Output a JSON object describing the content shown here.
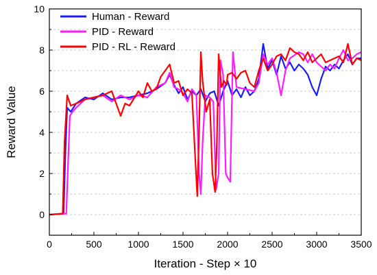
{
  "chart_data": {
    "type": "line",
    "xlabel": "Iteration - Step × 10",
    "ylabel": "Reward Value",
    "xlim": [
      0,
      3500
    ],
    "ylim": [
      -1,
      10
    ],
    "xticks": [
      0,
      500,
      1000,
      1500,
      2000,
      2500,
      3000,
      3500
    ],
    "yticks": [
      0,
      2,
      4,
      6,
      8,
      10
    ],
    "grid": "dashed horizontal",
    "legend_position": "top-left",
    "series": [
      {
        "name": "Human - Reward",
        "color": "#1a1aff",
        "points": [
          [
            0,
            0
          ],
          [
            160,
            0.05
          ],
          [
            180,
            3
          ],
          [
            200,
            5.2
          ],
          [
            240,
            5.0
          ],
          [
            300,
            5.4
          ],
          [
            400,
            5.7
          ],
          [
            500,
            5.6
          ],
          [
            600,
            5.9
          ],
          [
            700,
            5.6
          ],
          [
            800,
            5.7
          ],
          [
            900,
            5.7
          ],
          [
            1000,
            5.8
          ],
          [
            1100,
            5.9
          ],
          [
            1200,
            6.1
          ],
          [
            1300,
            6.4
          ],
          [
            1350,
            6.8
          ],
          [
            1400,
            6.3
          ],
          [
            1450,
            5.9
          ],
          [
            1500,
            6.2
          ],
          [
            1550,
            5.6
          ],
          [
            1600,
            6.0
          ],
          [
            1650,
            5.8
          ],
          [
            1700,
            6.1
          ],
          [
            1750,
            5.5
          ],
          [
            1800,
            5.9
          ],
          [
            1850,
            6.0
          ],
          [
            1900,
            5.3
          ],
          [
            1950,
            6.0
          ],
          [
            2000,
            6.5
          ],
          [
            2050,
            5.8
          ],
          [
            2100,
            6.1
          ],
          [
            2150,
            5.7
          ],
          [
            2200,
            6.2
          ],
          [
            2250,
            5.8
          ],
          [
            2300,
            6.0
          ],
          [
            2350,
            6.6
          ],
          [
            2400,
            8.3
          ],
          [
            2450,
            7.1
          ],
          [
            2500,
            7.5
          ],
          [
            2550,
            6.8
          ],
          [
            2600,
            7.7
          ],
          [
            2650,
            7.1
          ],
          [
            2700,
            7.4
          ],
          [
            2750,
            7.0
          ],
          [
            2800,
            7.3
          ],
          [
            2850,
            7.1
          ],
          [
            2900,
            6.8
          ],
          [
            2950,
            6.2
          ],
          [
            3000,
            5.8
          ],
          [
            3050,
            6.6
          ],
          [
            3100,
            7.2
          ],
          [
            3150,
            7.0
          ],
          [
            3200,
            7.3
          ],
          [
            3250,
            7.1
          ],
          [
            3300,
            7.5
          ],
          [
            3350,
            7.8
          ],
          [
            3400,
            7.3
          ],
          [
            3450,
            7.6
          ],
          [
            3500,
            7.6
          ]
        ]
      },
      {
        "name": "PID - Reward",
        "color": "#ff1aff",
        "points": [
          [
            0,
            0
          ],
          [
            190,
            0.05
          ],
          [
            210,
            2.5
          ],
          [
            230,
            4.8
          ],
          [
            260,
            5.0
          ],
          [
            300,
            5.2
          ],
          [
            400,
            5.6
          ],
          [
            500,
            5.7
          ],
          [
            600,
            5.8
          ],
          [
            700,
            5.5
          ],
          [
            800,
            5.8
          ],
          [
            900,
            5.6
          ],
          [
            1000,
            5.8
          ],
          [
            1100,
            5.7
          ],
          [
            1200,
            6.2
          ],
          [
            1300,
            6.4
          ],
          [
            1350,
            6.9
          ],
          [
            1400,
            6.2
          ],
          [
            1450,
            6.1
          ],
          [
            1500,
            5.9
          ],
          [
            1550,
            5.5
          ],
          [
            1600,
            6.1
          ],
          [
            1650,
            5.8
          ],
          [
            1680,
            2.0
          ],
          [
            1700,
            1.0
          ],
          [
            1720,
            3.5
          ],
          [
            1750,
            5.8
          ],
          [
            1800,
            5.7
          ],
          [
            1840,
            5.5
          ],
          [
            1870,
            1.2
          ],
          [
            1900,
            2.0
          ],
          [
            1920,
            7.5
          ],
          [
            1950,
            6.8
          ],
          [
            1980,
            2.0
          ],
          [
            2000,
            1.8
          ],
          [
            2030,
            1.6
          ],
          [
            2060,
            7.9
          ],
          [
            2100,
            6.2
          ],
          [
            2200,
            6.1
          ],
          [
            2300,
            6.0
          ],
          [
            2350,
            6.4
          ],
          [
            2400,
            7.8
          ],
          [
            2450,
            7.3
          ],
          [
            2500,
            7.6
          ],
          [
            2550,
            6.9
          ],
          [
            2600,
            5.8
          ],
          [
            2650,
            7.0
          ],
          [
            2700,
            7.6
          ],
          [
            2800,
            7.9
          ],
          [
            2850,
            7.8
          ],
          [
            2900,
            7.4
          ],
          [
            2950,
            7.8
          ],
          [
            3000,
            7.4
          ],
          [
            3050,
            7.2
          ],
          [
            3100,
            7.0
          ],
          [
            3150,
            7.3
          ],
          [
            3200,
            7.1
          ],
          [
            3250,
            7.6
          ],
          [
            3300,
            8.0
          ],
          [
            3350,
            7.5
          ],
          [
            3400,
            7.6
          ],
          [
            3450,
            7.8
          ],
          [
            3500,
            7.9
          ]
        ]
      },
      {
        "name": "PID - RL - Reward",
        "color": "#ff0000",
        "points": [
          [
            0,
            0
          ],
          [
            150,
            0.05
          ],
          [
            170,
            3.5
          ],
          [
            200,
            5.8
          ],
          [
            240,
            5.3
          ],
          [
            300,
            5.4
          ],
          [
            400,
            5.6
          ],
          [
            500,
            5.7
          ],
          [
            600,
            5.8
          ],
          [
            700,
            6.0
          ],
          [
            800,
            4.8
          ],
          [
            850,
            5.4
          ],
          [
            900,
            5.3
          ],
          [
            1000,
            6.0
          ],
          [
            1050,
            5.7
          ],
          [
            1100,
            6.4
          ],
          [
            1150,
            6.0
          ],
          [
            1200,
            6.1
          ],
          [
            1250,
            6.7
          ],
          [
            1300,
            7.0
          ],
          [
            1350,
            7.3
          ],
          [
            1400,
            6.4
          ],
          [
            1450,
            6.5
          ],
          [
            1500,
            5.8
          ],
          [
            1550,
            6.1
          ],
          [
            1600,
            5.9
          ],
          [
            1640,
            2.5
          ],
          [
            1660,
            0.9
          ],
          [
            1680,
            4.0
          ],
          [
            1700,
            7.9
          ],
          [
            1720,
            6.5
          ],
          [
            1760,
            5.0
          ],
          [
            1800,
            5.6
          ],
          [
            1830,
            2.0
          ],
          [
            1860,
            1.1
          ],
          [
            1880,
            3.5
          ],
          [
            1900,
            7.8
          ],
          [
            1930,
            6.2
          ],
          [
            1960,
            6.5
          ],
          [
            1990,
            6.3
          ],
          [
            2000,
            6.8
          ],
          [
            2050,
            6.9
          ],
          [
            2100,
            6.6
          ],
          [
            2150,
            6.9
          ],
          [
            2200,
            7.0
          ],
          [
            2250,
            6.4
          ],
          [
            2300,
            6.2
          ],
          [
            2350,
            7.0
          ],
          [
            2400,
            7.6
          ],
          [
            2450,
            7.0
          ],
          [
            2500,
            7.3
          ],
          [
            2550,
            7.7
          ],
          [
            2600,
            7.8
          ],
          [
            2650,
            7.5
          ],
          [
            2700,
            8.1
          ],
          [
            2750,
            7.9
          ],
          [
            2800,
            7.8
          ],
          [
            2850,
            7.5
          ],
          [
            2900,
            7.9
          ],
          [
            2950,
            7.4
          ],
          [
            3000,
            7.6
          ],
          [
            3050,
            7.8
          ],
          [
            3100,
            7.4
          ],
          [
            3150,
            7.5
          ],
          [
            3200,
            7.6
          ],
          [
            3250,
            7.7
          ],
          [
            3300,
            7.4
          ],
          [
            3350,
            8.3
          ],
          [
            3400,
            7.3
          ],
          [
            3450,
            7.6
          ],
          [
            3500,
            7.5
          ]
        ]
      }
    ]
  }
}
